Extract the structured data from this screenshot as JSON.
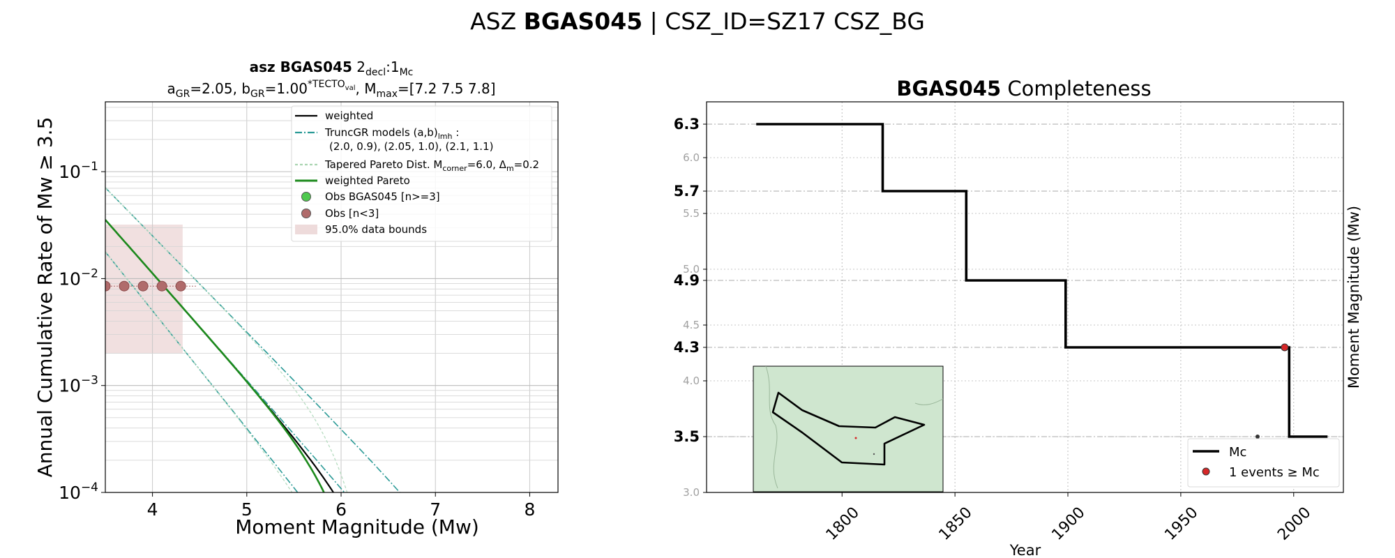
{
  "suptitle": {
    "prefix": "ASZ ",
    "bold": "BGAS045",
    "suffix": " | CSZ_ID=SZ17 CSZ_BG"
  },
  "chart_data": [
    {
      "type": "line",
      "title_bold": "asz BGAS045",
      "title_rest": "2",
      "title_sub1": "decl",
      "title_mid": ":1",
      "title_sub2": "Mc",
      "subtitle": {
        "a": "a",
        "a_sub": "GR",
        "a_val": "=2.05,  b",
        "b_sub": "GR",
        "b_val": "=1.00",
        "b_sup": "*TECTO",
        "b_sup_sub": "val",
        "m": ", M",
        "m_sub": "max",
        "m_val": "=[7.2 7.5 7.8]"
      },
      "xlabel": "Moment Magnitude (Mw)",
      "ylabel": "Annual Cumulative Rate of Mw  ≥  3.5",
      "xlim": [
        3.5,
        8.3
      ],
      "ylim": [
        0.0001,
        0.45
      ],
      "yscale": "log",
      "xticks": [
        4,
        5,
        6,
        7,
        8
      ],
      "yticks": [
        {
          "v": 0.1,
          "base": "10",
          "exp": "−1"
        },
        {
          "v": 0.01,
          "base": "10",
          "exp": "−2"
        },
        {
          "v": 0.001,
          "base": "10",
          "exp": "−3"
        },
        {
          "v": 0.0001,
          "base": "10",
          "exp": "−4"
        }
      ],
      "grid": true,
      "a_value": 2.05,
      "b_value": 1.0,
      "mmin": 3.5,
      "series": [
        {
          "name": "weighted",
          "kind": "trunc",
          "a": 2.05,
          "b": 1.0,
          "mmax": 6.5,
          "color": "#000000",
          "width": 2.2,
          "dash": ""
        },
        {
          "kind": "trunc",
          "a": 2.0,
          "b": 0.9,
          "mmax": 7.8,
          "color": "#2a9a96",
          "width": 1.6,
          "dash": "10,3,2,3"
        },
        {
          "kind": "trunc",
          "a": 2.05,
          "b": 1.0,
          "mmax": 7.5,
          "color": "#2a9a96",
          "width": 1.6,
          "dash": "10,3,2,3"
        },
        {
          "kind": "trunc",
          "a": 2.1,
          "b": 1.1,
          "mmax": 7.2,
          "color": "#2a9a96",
          "width": 1.6,
          "dash": "10,3,2,3"
        },
        {
          "kind": "tapered",
          "a": 2.0,
          "b": 0.9,
          "mc": 6.0,
          "color": "#b6dcc0",
          "width": 1.3,
          "dash": "4,3"
        },
        {
          "kind": "tapered",
          "a": 2.05,
          "b": 1.0,
          "mc": 6.0,
          "color": "#b6dcc0",
          "width": 1.3,
          "dash": "4,3"
        },
        {
          "kind": "tapered",
          "a": 2.1,
          "b": 1.1,
          "mc": 6.0,
          "color": "#b6dcc0",
          "width": 1.3,
          "dash": "4,3"
        },
        {
          "name": "weighted Pareto",
          "kind": "tapered",
          "a": 2.05,
          "b": 1.0,
          "mc": 6.0,
          "color": "#1c8a1c",
          "width": 2.6,
          "dash": ""
        }
      ],
      "observations": {
        "x": [
          3.5,
          3.7,
          3.9,
          4.1,
          4.3
        ],
        "y": [
          0.0085,
          0.0085,
          0.0085,
          0.0085,
          0.0085
        ],
        "color": "#b06b6b"
      },
      "data_bounds": {
        "x0": 3.5,
        "x1": 4.32,
        "y0": 0.002,
        "y1": 0.032
      },
      "legend": [
        {
          "label": "weighted",
          "kind": "line",
          "color": "#000000",
          "dash": ""
        },
        {
          "label": "TruncGR models (a,b)",
          "sub": "lmh",
          "suffix": " :",
          "label2": "(2.0, 0.9), (2.05, 1.0), (2.1, 1.1)",
          "kind": "line",
          "color": "#2a9a96",
          "dash": "10,3,2,3"
        },
        {
          "label": "Tapered Pareto Dist. M",
          "sub": "corner",
          "suffix": "=6.0, Δ",
          "sub2": "m",
          "suffix2": "=0.2",
          "kind": "line",
          "color": "#a8d4b0",
          "dash": "4,3"
        },
        {
          "label": "weighted Pareto",
          "kind": "line",
          "color": "#1c8a1c",
          "dash": ""
        },
        {
          "label": "Obs BGAS045 [n>=3]",
          "kind": "marker",
          "color": "#4ec94e"
        },
        {
          "label": "Obs [n<3]",
          "kind": "marker",
          "color": "#b06b6b"
        },
        {
          "label": "95.0% data bounds",
          "kind": "patch",
          "color": "#eedbdb"
        }
      ]
    },
    {
      "type": "line",
      "title_bold": "BGAS045",
      "title_rest": " Completeness",
      "xlabel": "Year",
      "ylabel": "Moment Magnitude (Mw)",
      "xlim": [
        1740,
        2022
      ],
      "ylim": [
        3.0,
        6.5
      ],
      "xticks": [
        1800,
        1850,
        1900,
        1950,
        2000
      ],
      "yticks_minor": [
        3.0,
        3.5,
        4.0,
        4.5,
        5.0,
        5.5,
        6.0
      ],
      "yticks_bold": [
        3.5,
        4.3,
        4.9,
        5.7,
        6.3
      ],
      "grid": true,
      "mc_step": {
        "years": [
          1762,
          1818,
          1818,
          1855,
          1855,
          1899,
          1899,
          1998,
          1998,
          2015
        ],
        "mags": [
          6.3,
          6.3,
          5.7,
          5.7,
          4.9,
          4.9,
          4.3,
          4.3,
          3.5,
          3.5
        ]
      },
      "events": [
        {
          "year": 1996,
          "mag": 4.3,
          "color": "#d62728"
        },
        {
          "year": 1984,
          "mag": 3.5,
          "color": "#333333"
        }
      ],
      "legend": [
        {
          "label": "Mc",
          "kind": "line",
          "color": "#000000"
        },
        {
          "label": "1 events  ≥  Mc",
          "kind": "marker",
          "color": "#d62728"
        }
      ],
      "inset_map": {
        "background": "#cfe6cf",
        "polygon_color": "#000000"
      }
    }
  ]
}
